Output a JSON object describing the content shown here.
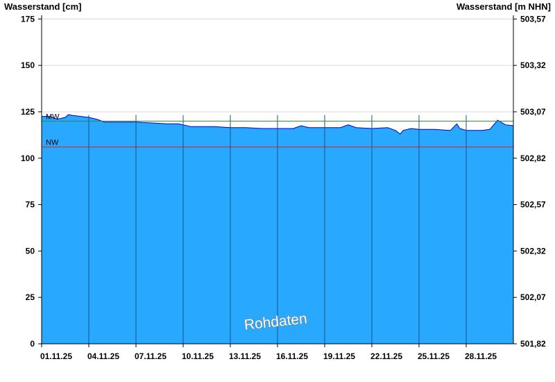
{
  "chart_data": {
    "type": "area",
    "y_left_title": "Wasserstand [cm]",
    "y_right_title": "Wasserstand [m NHN]",
    "ylim": [
      0,
      177
    ],
    "y_ticks": [
      0,
      25,
      50,
      75,
      100,
      125,
      150,
      175
    ],
    "y_ticks_labels": [
      "0",
      "25",
      "50",
      "75",
      "100",
      "125",
      "150",
      "175"
    ],
    "y_right_ticks_labels": [
      "501,82",
      "502,07",
      "502,32",
      "502,57",
      "502,82",
      "503,07",
      "503,32",
      "503,57"
    ],
    "x_tick_labels": [
      "01.11.25",
      "04.11.25",
      "07.11.25",
      "10.11.25",
      "13.11.25",
      "16.11.25",
      "19.11.25",
      "22.11.25",
      "25.11.25",
      "28.11.25"
    ],
    "xlim_days": [
      0,
      30
    ],
    "x_tick_days": [
      0,
      3,
      6,
      9,
      12,
      15,
      18,
      21,
      24,
      27
    ],
    "reference_lines": [
      {
        "label": "MW",
        "value": 120,
        "color": "#2e8b2e"
      },
      {
        "label": "NW",
        "value": 106,
        "color": "#d42020"
      }
    ],
    "fill_color": "#29a8ff",
    "line_color": "#0000cc",
    "watermark": "Rohdaten",
    "series": [
      {
        "x": [
          0,
          0.5,
          1,
          1.5,
          1.7,
          2,
          2.5,
          3,
          3.5,
          4,
          5,
          6,
          7,
          8,
          8.7,
          9,
          9.5,
          10,
          10.5,
          11,
          12,
          13,
          14,
          15,
          16,
          16.5,
          17,
          18,
          19,
          19.5,
          20,
          21,
          22,
          22.5,
          22.8,
          23,
          23.5,
          24,
          25,
          26,
          26.4,
          26.6,
          27,
          27.5,
          28,
          28.5,
          29,
          29.5,
          30
        ],
        "values": [
          122.5,
          122.5,
          121,
          122,
          123.5,
          123,
          122.5,
          122,
          121,
          119.5,
          119.5,
          119.5,
          119,
          118.5,
          118.5,
          118,
          117,
          117,
          117,
          117,
          116.5,
          116.5,
          116,
          116,
          116,
          117.5,
          116.5,
          116.5,
          116.5,
          118,
          116.5,
          116,
          116.5,
          115,
          113,
          115,
          116,
          115.5,
          115.5,
          115,
          118.5,
          116,
          115,
          115,
          115,
          115.5,
          120.5,
          118,
          117.5
        ]
      }
    ]
  }
}
